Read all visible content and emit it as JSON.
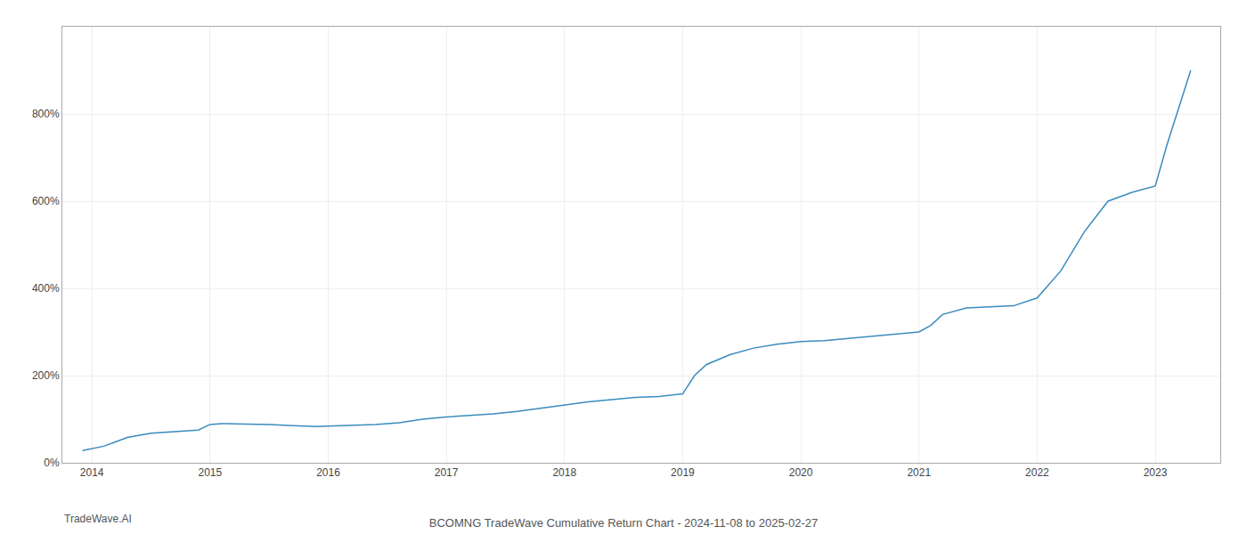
{
  "chart_data": {
    "type": "line",
    "title": "BCOMNG TradeWave Cumulative Return Chart - 2024-11-08 to 2025-02-27",
    "annotations": [
      "TradeWave.AI"
    ],
    "color": "#3a8bbf",
    "x": [
      2013.92,
      2014.0,
      2014.1,
      2014.2,
      2014.3,
      2014.5,
      2014.7,
      2014.9,
      2015.0,
      2015.1,
      2015.3,
      2015.5,
      2015.7,
      2015.9,
      2016.0,
      2016.2,
      2016.4,
      2016.6,
      2016.8,
      2017.0,
      2017.2,
      2017.4,
      2017.6,
      2017.8,
      2018.0,
      2018.2,
      2018.4,
      2018.6,
      2018.8,
      2019.0,
      2019.1,
      2019.2,
      2019.4,
      2019.6,
      2019.8,
      2020.0,
      2020.2,
      2020.4,
      2020.6,
      2020.8,
      2021.0,
      2021.1,
      2021.2,
      2021.4,
      2021.6,
      2021.8,
      2022.0,
      2022.2,
      2022.4,
      2022.6,
      2022.8,
      2023.0,
      2023.1,
      2023.3
    ],
    "values": [
      28,
      32,
      38,
      48,
      58,
      68,
      72,
      75,
      88,
      90,
      89,
      88,
      85,
      83,
      84,
      86,
      88,
      92,
      100,
      105,
      108,
      112,
      118,
      125,
      133,
      140,
      145,
      150,
      152,
      158,
      200,
      225,
      248,
      263,
      272,
      278,
      280,
      285,
      290,
      295,
      300,
      315,
      340,
      355,
      358,
      360,
      378,
      440,
      530,
      600,
      620,
      635,
      730,
      900
    ],
    "xlim": [
      2013.75,
      2023.55
    ],
    "xticks": [
      2014,
      2015,
      2016,
      2017,
      2018,
      2019,
      2020,
      2021,
      2022,
      2023
    ],
    "ylim": [
      0,
      1000
    ],
    "yticks": [
      {
        "value": 0,
        "label": "0%"
      },
      {
        "value": 200,
        "label": "200%"
      },
      {
        "value": 400,
        "label": "400%"
      },
      {
        "value": 600,
        "label": "600%"
      },
      {
        "value": 800,
        "label": "800%"
      }
    ],
    "grid": true
  }
}
